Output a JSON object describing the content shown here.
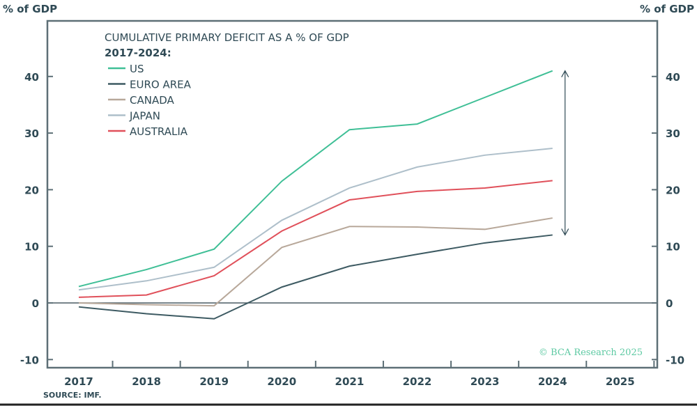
{
  "chart_data": {
    "type": "line",
    "title": "CUMULATIVE PRIMARY DEFICIT AS A % OF GDP",
    "subtitle": "2017-2024:",
    "ylabel_left": "% of GDP",
    "ylabel_right": "% of GDP",
    "source": "SOURCE: IMF.",
    "watermark": "© BCA Research 2025",
    "x": [
      2017,
      2018,
      2019,
      2020,
      2021,
      2022,
      2023,
      2024
    ],
    "xticks": [
      "2017",
      "2018",
      "2019",
      "2020",
      "2021",
      "2022",
      "2023",
      "2024",
      "2025"
    ],
    "xlim": [
      2016.5,
      2025.5
    ],
    "ylim": [
      -11,
      49
    ],
    "yticks": [
      -10,
      0,
      10,
      20,
      30,
      40
    ],
    "grid": false,
    "legend_position": "top-left",
    "annotation": "double-headed arrow at 2024 spanning Euro Area to US",
    "series": [
      {
        "name": "US",
        "color": "#3fbf96",
        "values": [
          2.9,
          5.9,
          9.5,
          21.5,
          30.6,
          31.6,
          36.3,
          41.0
        ]
      },
      {
        "name": "EURO AREA",
        "color": "#3d5a62",
        "values": [
          -0.7,
          -1.9,
          -2.8,
          2.8,
          6.5,
          8.6,
          10.6,
          12.0
        ]
      },
      {
        "name": "CANADA",
        "color": "#b8a89a",
        "values": [
          0.0,
          -0.3,
          -0.5,
          9.8,
          13.5,
          13.4,
          13.0,
          15.0
        ]
      },
      {
        "name": "JAPAN",
        "color": "#aebfca",
        "values": [
          2.3,
          3.9,
          6.3,
          14.6,
          20.3,
          24.0,
          26.1,
          27.3
        ]
      },
      {
        "name": "AUSTRALIA",
        "color": "#e0505a",
        "values": [
          1.0,
          1.4,
          4.8,
          12.7,
          18.2,
          19.7,
          20.3,
          21.6
        ]
      }
    ]
  }
}
